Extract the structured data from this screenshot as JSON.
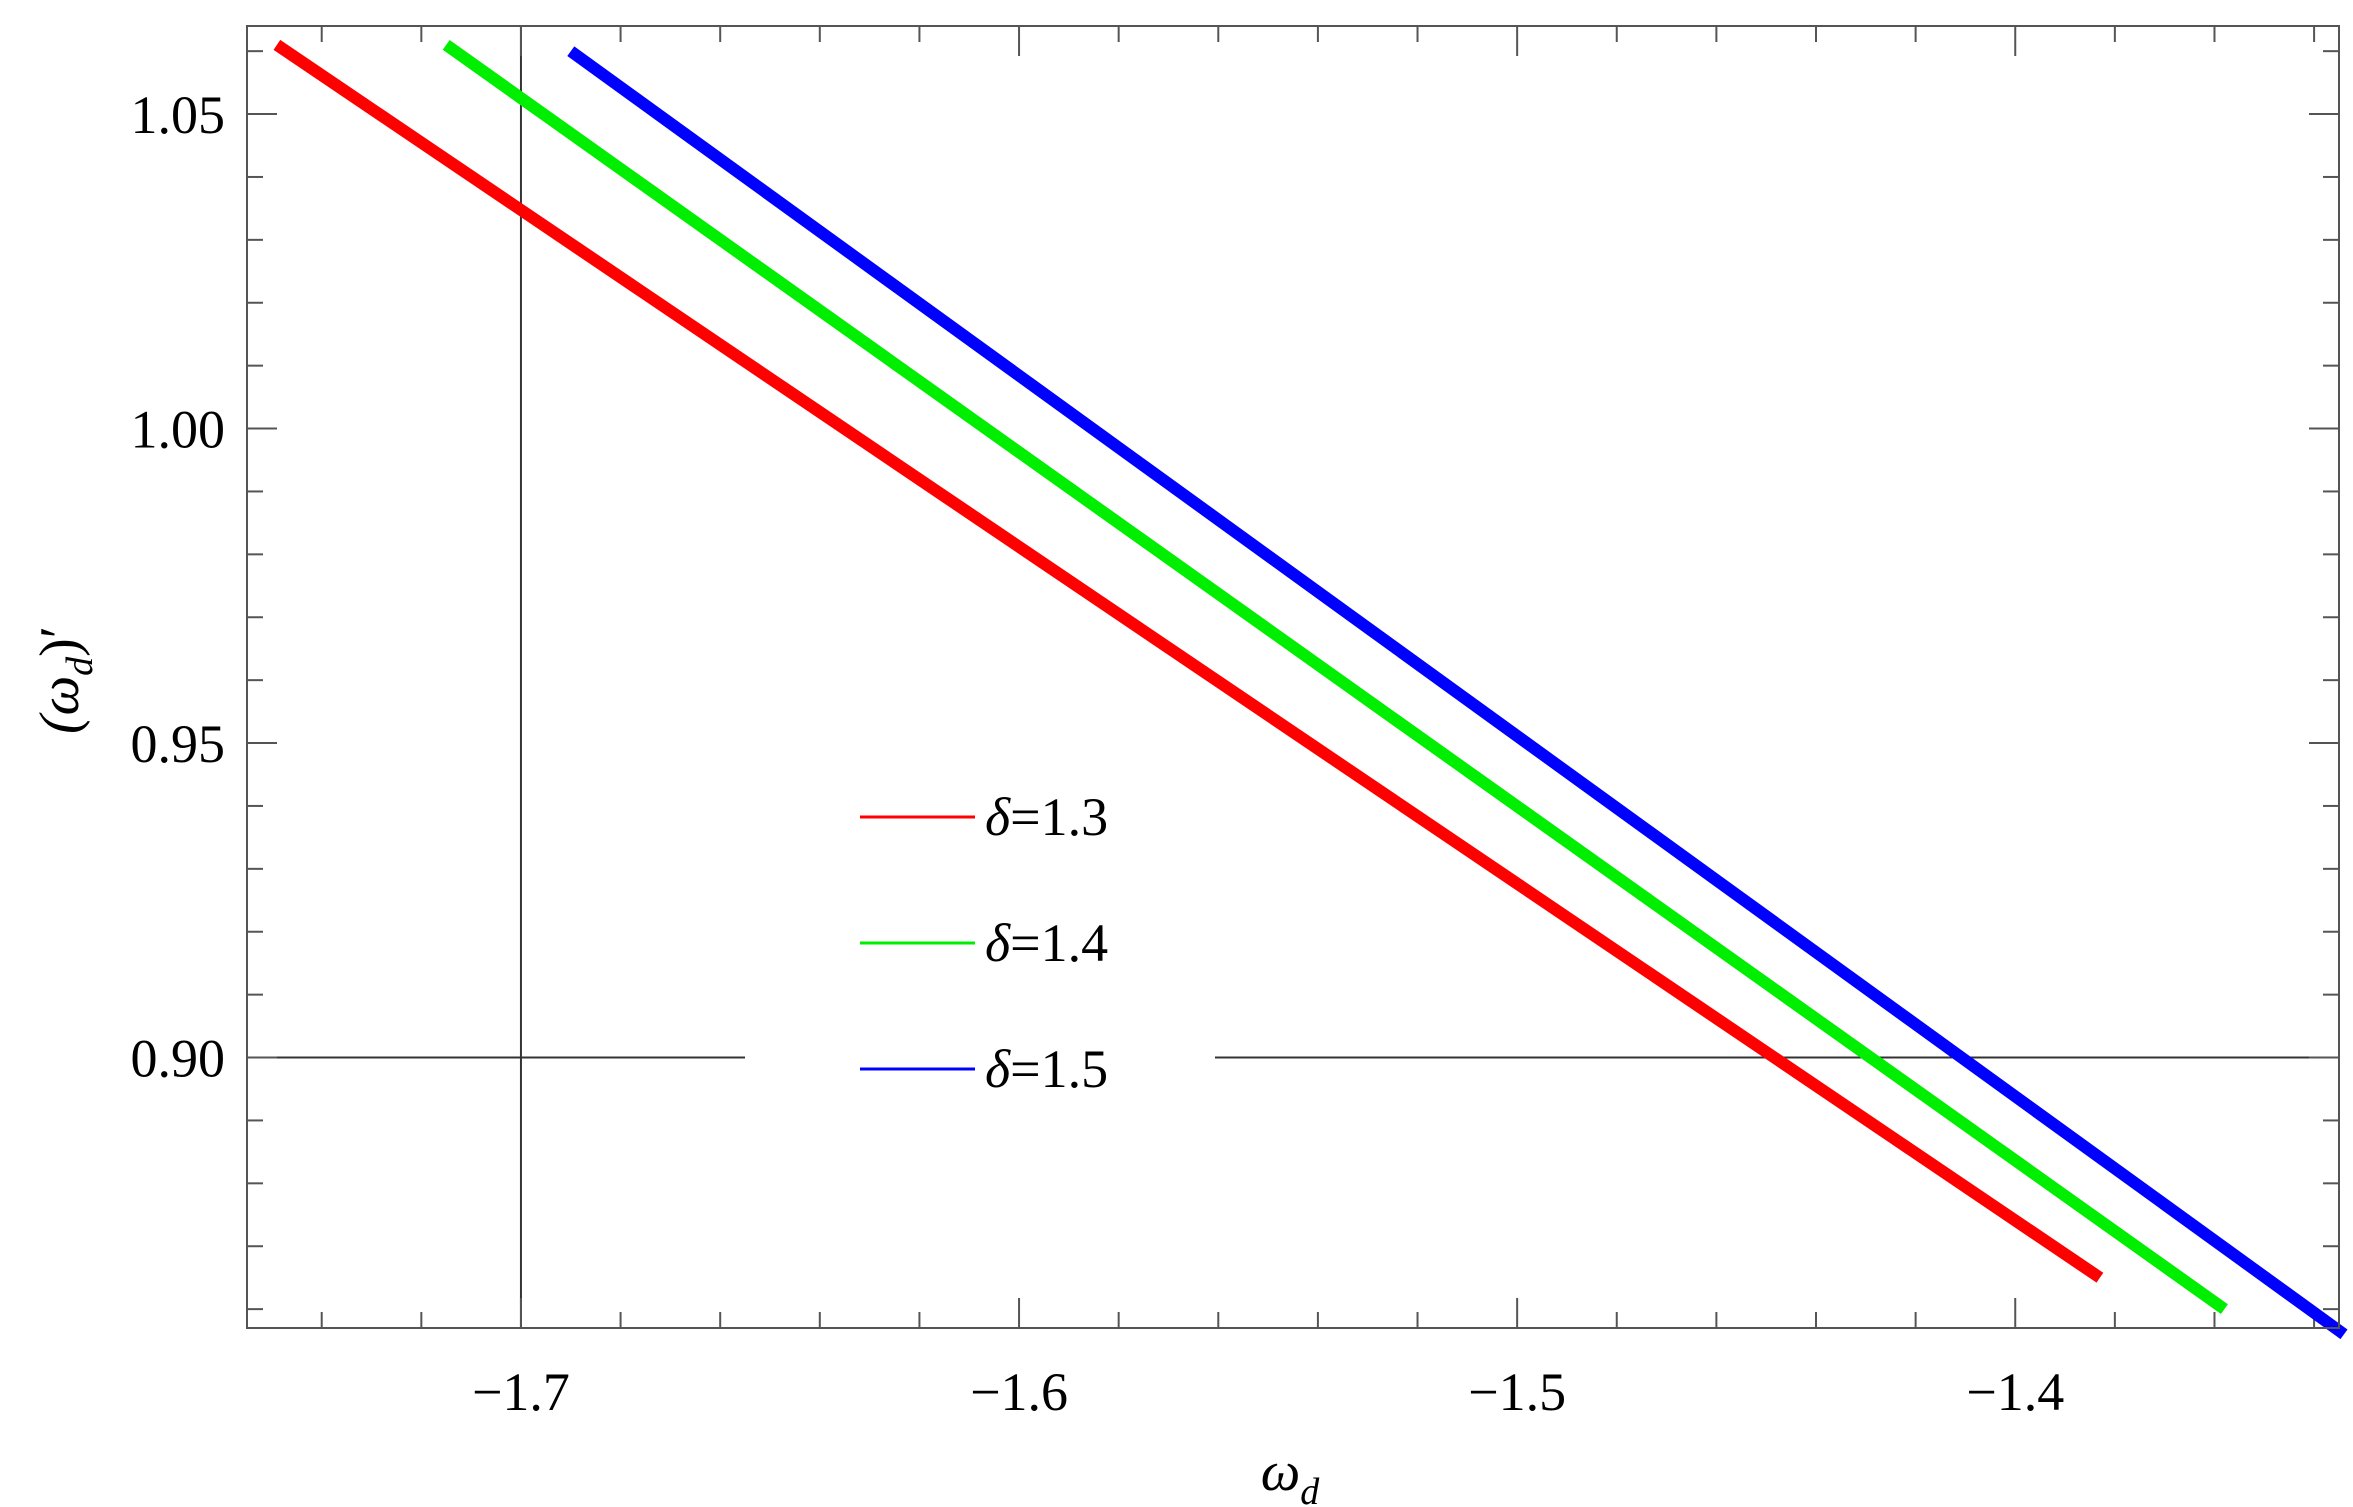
{
  "chart_data": {
    "type": "line",
    "xlabel": "ω",
    "xlabel_sub": "d",
    "ylabel": "(ω",
    "ylabel_sub": "d",
    "ylabel_suffix": ")′",
    "xlim": [
      -1.755,
      -1.335
    ],
    "ylim": [
      0.857,
      1.064
    ],
    "x_ticks": [
      {
        "value": -1.7,
        "label": "−1.7"
      },
      {
        "value": -1.6,
        "label": "−1.6"
      },
      {
        "value": -1.5,
        "label": "−1.5"
      },
      {
        "value": -1.4,
        "label": "−1.4"
      }
    ],
    "y_ticks": [
      {
        "value": 0.9,
        "label": "0.90"
      },
      {
        "value": 0.95,
        "label": "0.95"
      },
      {
        "value": 1.0,
        "label": "1.00"
      },
      {
        "value": 1.05,
        "label": "1.05"
      }
    ],
    "x_minor_step": 0.02,
    "y_minor_step": 0.01,
    "reference_lines": {
      "x": -1.7,
      "y": 0.9
    },
    "grid": false,
    "legend_position": "center",
    "legend_entries": [
      {
        "symbol": "δ",
        "text": "=1.3"
      },
      {
        "symbol": "δ",
        "text": "=1.4"
      },
      {
        "symbol": "δ",
        "text": "=1.5"
      }
    ],
    "series": [
      {
        "color": "#ff0000",
        "x": [
          -1.749,
          -1.383
        ],
        "y": [
          1.061,
          0.865
        ]
      },
      {
        "color": "#00ee00",
        "x": [
          -1.715,
          -1.358
        ],
        "y": [
          1.061,
          0.86
        ]
      },
      {
        "color": "#0000ff",
        "x": [
          -1.69,
          -1.334
        ],
        "y": [
          1.06,
          0.856
        ]
      }
    ]
  }
}
